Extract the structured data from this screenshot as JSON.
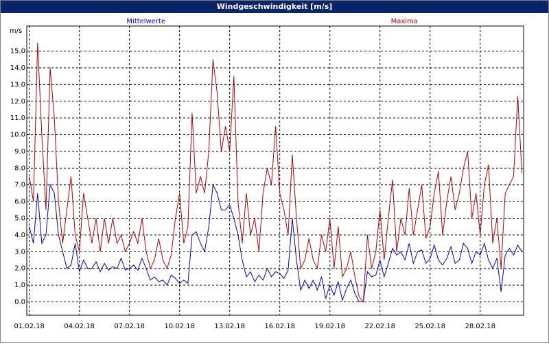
{
  "chart_data": {
    "type": "line",
    "title": "Windgeschwindigkeit [m/s]",
    "y_label": "m/s",
    "grid": true,
    "x": [
      0,
      0.25,
      0.5,
      0.75,
      1,
      1.25,
      1.5,
      1.75,
      2,
      2.25,
      2.5,
      2.75,
      3,
      3.25,
      3.5,
      3.75,
      4,
      4.25,
      4.5,
      4.75,
      5,
      5.25,
      5.5,
      5.75,
      6,
      6.25,
      6.5,
      6.75,
      7,
      7.25,
      7.5,
      7.75,
      8,
      8.25,
      8.5,
      8.75,
      9,
      9.25,
      9.5,
      9.75,
      10,
      10.25,
      10.5,
      10.75,
      11,
      11.25,
      11.5,
      11.75,
      12,
      12.25,
      12.5,
      12.75,
      13,
      13.25,
      13.5,
      13.75,
      14,
      14.25,
      14.5,
      14.75,
      15,
      15.25,
      15.5,
      15.75,
      16,
      16.25,
      16.5,
      16.75,
      17,
      17.25,
      17.5,
      17.75,
      18,
      18.25,
      18.5,
      18.75,
      19,
      19.25,
      19.5,
      19.75,
      20,
      20.25,
      20.5,
      20.75,
      21,
      21.25,
      21.5,
      21.75,
      22,
      22.25,
      22.5,
      22.75,
      23,
      23.25,
      23.5,
      23.75,
      24,
      24.25,
      24.5,
      24.75,
      25,
      25.25,
      25.5,
      25.75,
      26,
      26.25,
      26.5,
      26.75,
      27,
      27.25,
      27.5,
      27.75,
      28,
      28.25,
      28.5,
      28.75,
      29,
      29.25,
      29.5
    ],
    "series": [
      {
        "name": "Mittelwerte",
        "color": "#0000c0",
        "values": [
          4.5,
          3.5,
          6.5,
          3.5,
          4.0,
          7.0,
          6.5,
          4.0,
          3.0,
          2.0,
          2.2,
          3.5,
          1.8,
          2.5,
          2.0,
          2.0,
          2.4,
          1.8,
          2.3,
          1.9,
          2.1,
          2.0,
          2.6,
          1.9,
          2.0,
          2.2,
          1.9,
          2.6,
          2.0,
          1.3,
          1.5,
          1.2,
          1.3,
          1.0,
          1.6,
          1.4,
          1.1,
          1.3,
          1.1,
          4.0,
          4.2,
          3.5,
          3.0,
          4.5,
          7.0,
          6.5,
          5.5,
          5.5,
          5.8,
          5.0,
          4.0,
          2.5,
          1.5,
          1.8,
          1.2,
          1.6,
          1.3,
          2.0,
          1.5,
          1.8,
          1.7,
          1.4,
          1.9,
          5.0,
          2.5,
          0.7,
          1.3,
          0.8,
          1.3,
          0.7,
          1.5,
          0.2,
          1.0,
          0.4,
          1.2,
          0.1,
          0.8,
          1.3,
          0.5,
          0.0,
          0.0,
          1.8,
          1.5,
          1.6,
          2.5,
          1.5,
          2.3,
          3.2,
          2.8,
          3.0,
          2.5,
          3.5,
          2.3,
          3.0,
          3.1,
          2.3,
          2.6,
          3.4,
          2.5,
          2.2,
          2.6,
          3.3,
          2.3,
          2.5,
          3.5,
          3.2,
          2.3,
          3.0,
          2.8,
          3.5,
          2.5,
          2.0,
          2.6,
          0.6,
          2.8,
          3.2,
          2.8,
          3.4,
          3.0
        ]
      },
      {
        "name": "Maxima",
        "color": "#b00000",
        "values": [
          7.5,
          6.0,
          15.5,
          10.0,
          5.5,
          14.0,
          11.0,
          6.0,
          3.5,
          5.5,
          7.5,
          4.0,
          3.0,
          6.5,
          5.0,
          3.5,
          5.0,
          3.0,
          5.0,
          3.5,
          5.0,
          3.5,
          4.0,
          3.0,
          3.5,
          4.2,
          3.5,
          5.0,
          3.0,
          2.0,
          2.5,
          3.8,
          2.5,
          2.0,
          2.8,
          5.0,
          6.5,
          3.5,
          4.5,
          11.3,
          6.5,
          7.5,
          6.5,
          9.0,
          14.5,
          12.5,
          9.0,
          10.5,
          9.0,
          13.5,
          6.0,
          3.5,
          6.5,
          4.0,
          5.0,
          3.0,
          6.5,
          8.0,
          7.0,
          10.5,
          6.5,
          5.5,
          4.0,
          8.8,
          5.0,
          2.0,
          2.5,
          3.8,
          2.5,
          2.0,
          4.0,
          3.0,
          5.0,
          2.0,
          4.5,
          1.5,
          2.0,
          3.0,
          1.5,
          0.3,
          0.0,
          4.0,
          2.0,
          3.0,
          5.5,
          2.5,
          5.0,
          7.3,
          3.0,
          5.0,
          4.0,
          6.8,
          4.0,
          5.5,
          7.0,
          3.8,
          4.5,
          6.5,
          7.8,
          4.0,
          6.0,
          7.5,
          5.5,
          6.5,
          8.0,
          9.0,
          5.0,
          6.5,
          4.0,
          7.0,
          8.2,
          3.5,
          5.0,
          2.0,
          6.5,
          7.0,
          7.5,
          12.3,
          7.7
        ]
      }
    ],
    "xlim": [
      -0.15,
      29.6
    ],
    "xticks": [
      {
        "value": 0,
        "label": "01.02.18"
      },
      {
        "value": 3,
        "label": "04.02.18"
      },
      {
        "value": 6,
        "label": "07.02.18"
      },
      {
        "value": 9,
        "label": "10.02.18"
      },
      {
        "value": 12,
        "label": "13.02.18"
      },
      {
        "value": 15,
        "label": "16.02.18"
      },
      {
        "value": 18,
        "label": "19.02.18"
      },
      {
        "value": 21,
        "label": "22.02.18"
      },
      {
        "value": 24,
        "label": "25.02.18"
      },
      {
        "value": 27,
        "label": "28.02.18"
      }
    ],
    "ylim": [
      -0.8,
      16.5
    ],
    "yticks": [
      {
        "value": 0,
        "label": "0.0"
      },
      {
        "value": 1,
        "label": "1.0"
      },
      {
        "value": 2,
        "label": "2.0"
      },
      {
        "value": 3,
        "label": "3.0"
      },
      {
        "value": 4,
        "label": "4.0"
      },
      {
        "value": 5,
        "label": "5.0"
      },
      {
        "value": 6,
        "label": "6.0"
      },
      {
        "value": 7,
        "label": "7.0"
      },
      {
        "value": 8,
        "label": "8.0"
      },
      {
        "value": 9,
        "label": "9.0"
      },
      {
        "value": 10,
        "label": "10.0"
      },
      {
        "value": 11,
        "label": "11.0"
      },
      {
        "value": 12,
        "label": "12.0"
      },
      {
        "value": 13,
        "label": "13.0"
      },
      {
        "value": 14,
        "label": "14.0"
      },
      {
        "value": 15,
        "label": "15.0"
      }
    ]
  }
}
